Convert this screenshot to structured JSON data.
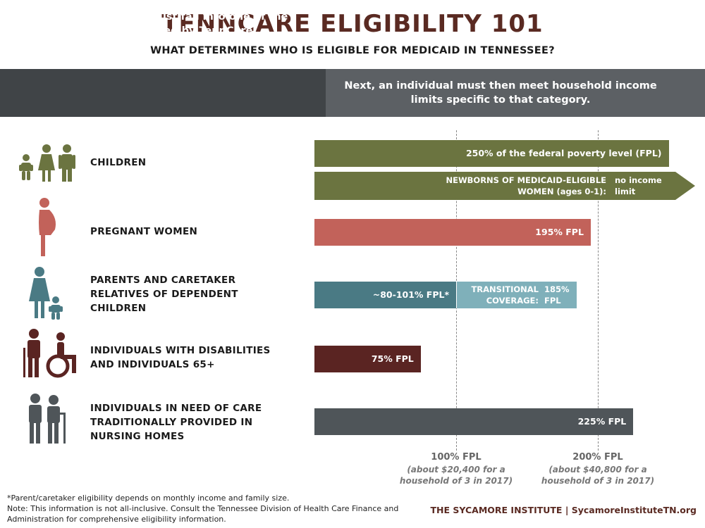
{
  "header": {
    "title": "TENNCARE ELIGIBILITY 101",
    "subtitle": "WHAT DETERMINES WHO IS ELIGIBLE FOR MEDICAID IN TENNESSEE?"
  },
  "banner": {
    "left": "First, an individual must fall into one of the categories covered by TennCare.",
    "right": "Next, an individual must then meet household income limits specific to that category."
  },
  "categories": [
    {
      "label": "CHILDREN",
      "icon": "children-family-icon"
    },
    {
      "label": "PREGNANT WOMEN",
      "icon": "pregnant-woman-icon"
    },
    {
      "label": "PARENTS AND CARETAKER RELATIVES OF DEPENDENT CHILDREN",
      "icon": "parent-child-icon"
    },
    {
      "label": "INDIVIDUALS WITH DISABILITIES AND INDIVIDUALS 65+",
      "icon": "elderly-wheelchair-icon"
    },
    {
      "label": "INDIVIDUALS IN NEED OF CARE TRADITIONALLY PROVIDED IN NURSING HOMES",
      "icon": "elderly-couple-icon"
    }
  ],
  "chart_data": {
    "type": "bar",
    "orientation": "horizontal",
    "unit": "% FPL",
    "xlim": [
      0,
      250
    ],
    "bars": [
      {
        "category": "CHILDREN",
        "value": 250,
        "label": "250% of the federal poverty level (FPL)",
        "color": "#6b7440"
      },
      {
        "category": "CHILDREN",
        "value": null,
        "label": "NEWBORNS OF MEDICAID-ELIGIBLE WOMEN (ages 0-1):",
        "extra_label": "no income limit",
        "color": "#6b7440",
        "open_ended": true
      },
      {
        "category": "PREGNANT WOMEN",
        "value": 195,
        "label": "195% FPL",
        "color": "#c2625a"
      },
      {
        "category": "PARENTS AND CARETAKER RELATIVES OF DEPENDENT CHILDREN",
        "value": 100,
        "label": "~80-101% FPL*",
        "color": "#4a7a84"
      },
      {
        "category": "PARENTS AND CARETAKER RELATIVES OF DEPENDENT CHILDREN",
        "start": 100,
        "value": 185,
        "label": "TRANSITIONAL COVERAGE:",
        "extra_label": "185% FPL",
        "color": "#7fb0ba"
      },
      {
        "category": "INDIVIDUALS WITH DISABILITIES AND INDIVIDUALS 65+",
        "value": 75,
        "label": "75% FPL",
        "color": "#5a2422"
      },
      {
        "category": "INDIVIDUALS IN NEED OF CARE TRADITIONALLY PROVIDED IN NURSING HOMES",
        "value": 225,
        "label": "225% FPL",
        "color": "#4f5559"
      }
    ],
    "reference_lines": [
      {
        "value": 100,
        "label": "100% FPL",
        "note": "(about $20,400 for a household of 3 in 2017)"
      },
      {
        "value": 200,
        "label": "200% FPL",
        "note": "(about $40,800 for a household of 3 in 2017)"
      }
    ]
  },
  "footer": {
    "note1": "*Parent/caretaker eligibility depends on monthly income and family size.",
    "note2": "Note: This information is not all-inclusive. Consult the Tennessee Division of Health Care Finance and Administration for comprehensive eligibility information.",
    "source": "THE SYCAMORE INSTITUTE | SycamoreInstituteTN.org"
  }
}
